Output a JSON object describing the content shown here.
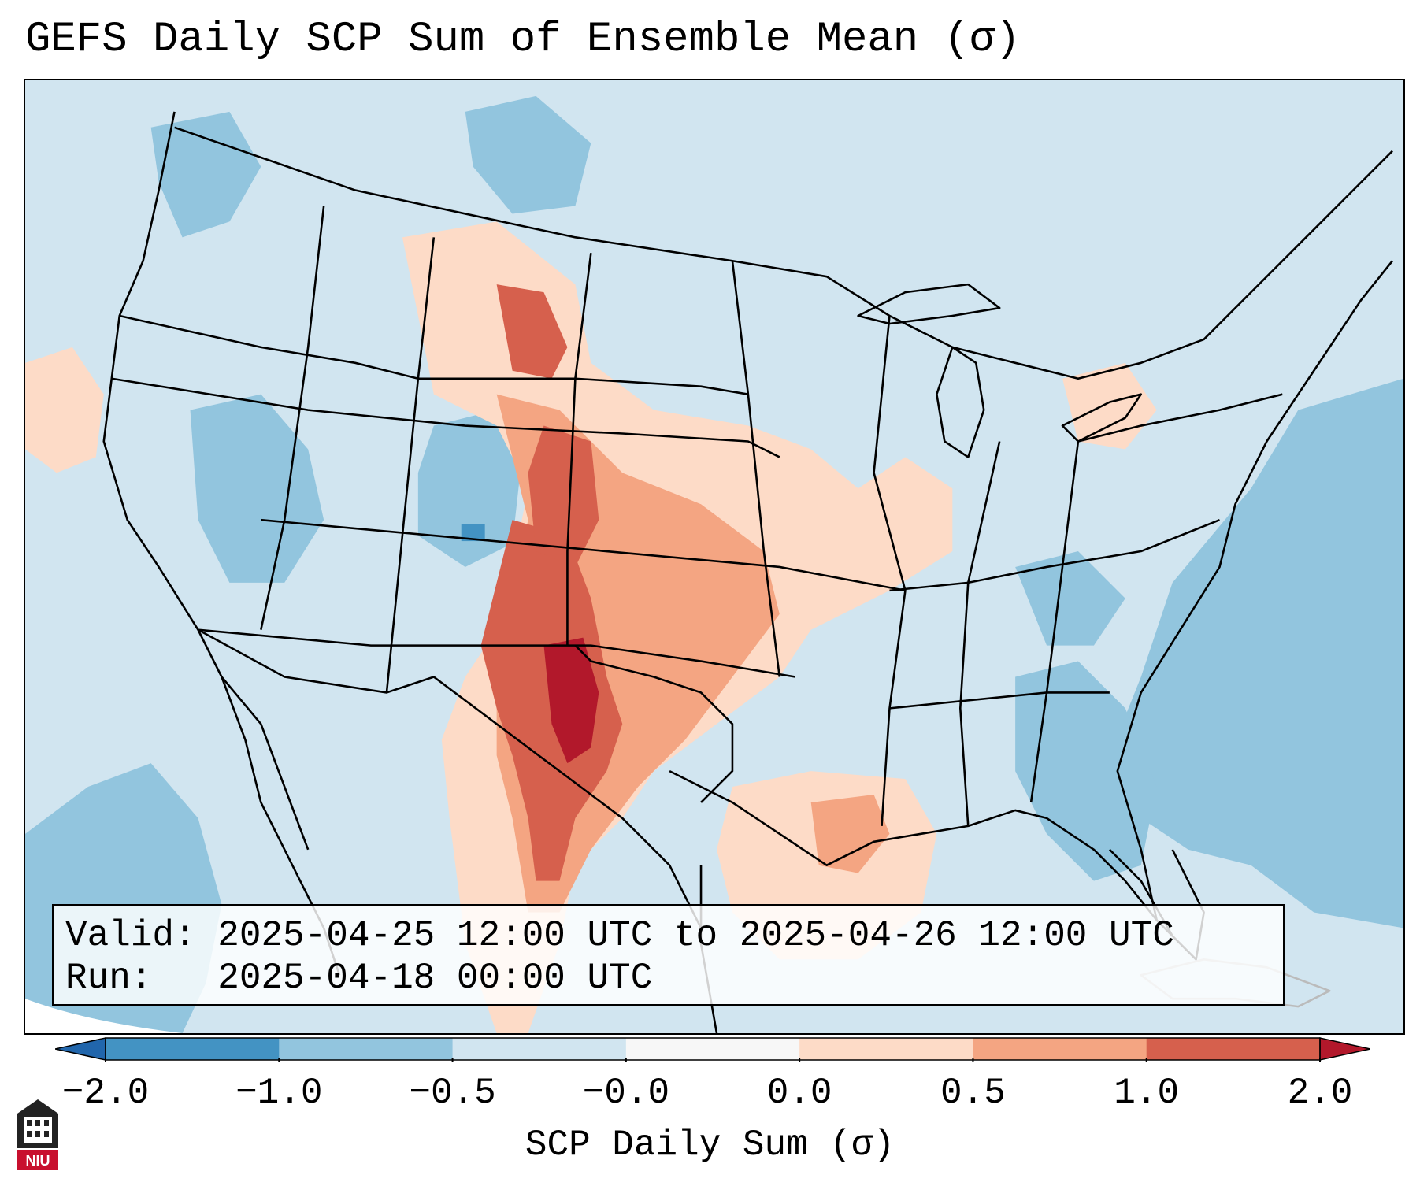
{
  "title": "GEFS Daily SCP Sum of Ensemble Mean (σ)",
  "info": {
    "valid_line": "Valid: 2025-04-25 12:00 UTC to 2025-04-26 12:00 UTC",
    "run_line": "Run:   2025-04-18 00:00 UTC"
  },
  "colorbar": {
    "label": "SCP Daily Sum (σ)",
    "ticks": [
      "−2.0",
      "−1.0",
      "−0.5",
      "−0.0",
      "0.0",
      "0.5",
      "1.0",
      "2.0"
    ],
    "bins": [
      {
        "from": -2.0,
        "to": -1.0,
        "color": "#4393c3"
      },
      {
        "from": -1.0,
        "to": -0.5,
        "color": "#92c5de"
      },
      {
        "from": -0.5,
        "to": 0.0,
        "color": "#d1e5f0"
      },
      {
        "from": 0.0,
        "to": 0.0,
        "color": "#f7f7f7"
      },
      {
        "from": 0.0,
        "to": 0.5,
        "color": "#fddbc7"
      },
      {
        "from": 0.5,
        "to": 1.0,
        "color": "#f4a582"
      },
      {
        "from": 1.0,
        "to": 2.0,
        "color": "#d6604d"
      }
    ],
    "under_color": "#2166ac",
    "over_color": "#b2182b"
  },
  "map": {
    "background_color": "#d1e5f0",
    "boundary_color": "#000000",
    "region": "Continental United States"
  },
  "logo": {
    "text": "NIU",
    "brand_color": "#c8102e"
  }
}
